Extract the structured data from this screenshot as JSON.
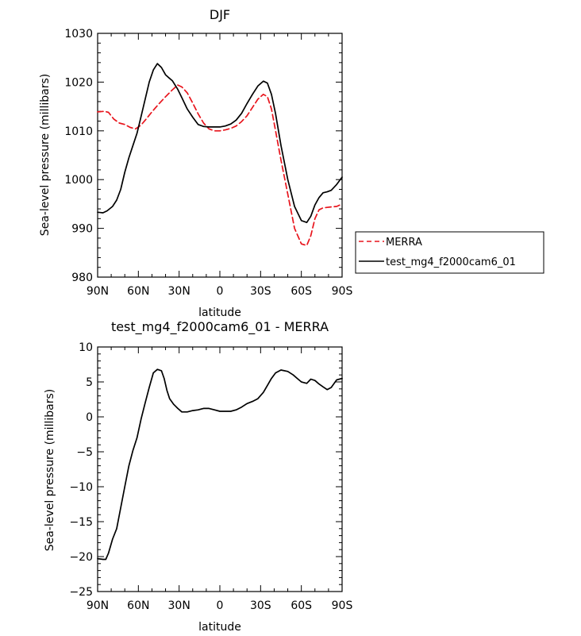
{
  "chart_data": [
    {
      "type": "line",
      "title": "DJF",
      "xlabel": "latitude",
      "ylabel": "Sea-level pressure (millibars)",
      "xlim": [
        90,
        -90
      ],
      "ylim": [
        980,
        1030
      ],
      "x_ticks": [
        90,
        60,
        30,
        0,
        -30,
        -60,
        -90
      ],
      "x_tick_labels": [
        "90N",
        "60N",
        "30N",
        "0",
        "30S",
        "60S",
        "90S"
      ],
      "y_ticks": [
        980,
        990,
        1000,
        1010,
        1020,
        1030
      ],
      "y_tick_labels": [
        "980",
        "990",
        "1000",
        "1010",
        "1020",
        "1030"
      ],
      "legend": {
        "placement": "right",
        "entries": [
          "MERRA",
          "test_mg4_f2000cam6_01"
        ]
      },
      "series": [
        {
          "name": "MERRA",
          "color": "#e8141c",
          "dash": "dashed",
          "x": [
            90,
            85,
            82,
            78,
            74,
            70,
            66,
            62,
            58,
            54,
            50,
            45,
            40,
            35,
            31,
            28,
            24,
            20,
            16,
            12,
            8,
            4,
            0,
            -4,
            -8,
            -12,
            -16,
            -20,
            -24,
            -28,
            -32,
            -35,
            -38,
            -41,
            -45,
            -50,
            -55,
            -60,
            -64,
            -67,
            -70,
            -73,
            -76,
            -79,
            -82,
            -86,
            -90
          ],
          "y": [
            1013.9,
            1014,
            1013.8,
            1012.4,
            1011.6,
            1011.3,
            1010.7,
            1010.4,
            1011.2,
            1012.5,
            1013.9,
            1015.5,
            1017,
            1018.4,
            1019.4,
            1019,
            1017.8,
            1015.7,
            1013.5,
            1011.6,
            1010.4,
            1010,
            1010,
            1010.2,
            1010.5,
            1011,
            1011.9,
            1013.1,
            1014.8,
            1016.5,
            1017.5,
            1017,
            1014.5,
            1010,
            1004,
            997,
            990,
            986.8,
            986.5,
            988.5,
            992,
            993.8,
            994.2,
            994.3,
            994.4,
            994.5,
            995
          ]
        },
        {
          "name": "test_mg4_f2000cam6_01",
          "color": "#000000",
          "dash": "solid",
          "x": [
            90,
            86,
            83,
            79,
            76,
            73,
            70,
            67,
            64,
            61,
            58,
            55,
            52,
            49,
            46,
            43,
            40,
            38,
            35,
            31,
            28,
            24,
            20,
            16,
            12,
            8,
            4,
            0,
            -4,
            -8,
            -12,
            -16,
            -20,
            -24,
            -28,
            -32,
            -35,
            -38,
            -41,
            -45,
            -50,
            -55,
            -60,
            -64,
            -67,
            -70,
            -73,
            -76,
            -79,
            -82,
            -86,
            -90
          ],
          "y": [
            993.3,
            993.2,
            993.6,
            994.5,
            995.8,
            998,
            1001.5,
            1004.5,
            1007,
            1009.5,
            1013,
            1016.5,
            1020,
            1022.5,
            1023.8,
            1023,
            1021.5,
            1021,
            1020.3,
            1018.5,
            1016.8,
            1014.5,
            1012.8,
            1011.3,
            1010.9,
            1010.8,
            1010.8,
            1010.8,
            1011,
            1011.4,
            1012.2,
            1013.6,
            1015.6,
            1017.5,
            1019.2,
            1020.2,
            1019.8,
            1017.5,
            1013.5,
            1007,
            1000,
            994.5,
            991.6,
            991.2,
            992.5,
            994.8,
            996.3,
            997.3,
            997.5,
            997.8,
            999,
            1000.5
          ]
        }
      ]
    },
    {
      "type": "line",
      "title": "test_mg4_f2000cam6_01 - MERRA",
      "xlabel": "latitude",
      "ylabel": "Sea-level pressure (millibars)",
      "xlim": [
        90,
        -90
      ],
      "ylim": [
        -25,
        10
      ],
      "x_ticks": [
        90,
        60,
        30,
        0,
        -30,
        -60,
        -90
      ],
      "x_tick_labels": [
        "90N",
        "60N",
        "30N",
        "0",
        "30S",
        "60S",
        "90S"
      ],
      "y_ticks": [
        -25,
        -20,
        -15,
        -10,
        -5,
        0,
        5,
        10
      ],
      "y_tick_labels": [
        "−25",
        "−20",
        "−15",
        "−10",
        "−5",
        "0",
        "5",
        "10"
      ],
      "series": [
        {
          "color": "#000000",
          "dash": "solid",
          "x": [
            90,
            86,
            84,
            82,
            79,
            76,
            73,
            70,
            67,
            64,
            61,
            58,
            55,
            52,
            49,
            46,
            43,
            41,
            39,
            37,
            34,
            31,
            28,
            24,
            20,
            16,
            12,
            8,
            4,
            0,
            -4,
            -8,
            -12,
            -16,
            -20,
            -24,
            -28,
            -32,
            -35,
            -38,
            -41,
            -45,
            -50,
            -54,
            -57,
            -60,
            -64,
            -67,
            -70,
            -73,
            -76,
            -79,
            -82,
            -86,
            -88,
            -90
          ],
          "y": [
            -20.3,
            -20.4,
            -20.4,
            -19.5,
            -17.5,
            -16,
            -13,
            -10,
            -7,
            -4.8,
            -3,
            -0.3,
            2,
            4.2,
            6.3,
            6.8,
            6.6,
            5.5,
            3.8,
            2.6,
            1.8,
            1.2,
            0.7,
            0.7,
            0.9,
            1,
            1.2,
            1.2,
            1,
            0.8,
            0.8,
            0.8,
            1,
            1.4,
            1.9,
            2.2,
            2.6,
            3.5,
            4.5,
            5.5,
            6.3,
            6.7,
            6.5,
            6,
            5.5,
            5,
            4.8,
            5.4,
            5.2,
            4.7,
            4.3,
            3.9,
            4.2,
            5.3,
            5.4,
            5.5
          ]
        }
      ]
    }
  ]
}
